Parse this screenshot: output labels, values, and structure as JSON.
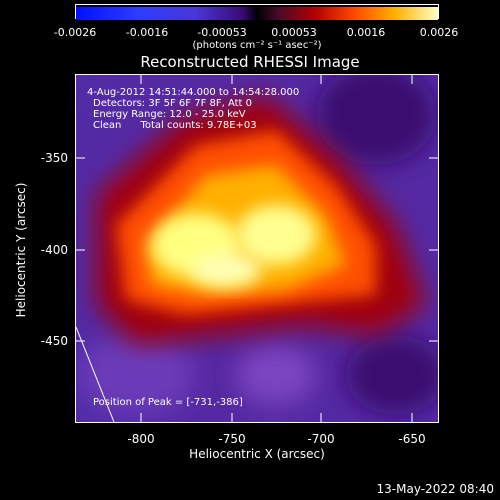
{
  "colorbar": {
    "tick_labels": [
      "-0.0026",
      "-0.0016",
      "-0.00053",
      "0.00053",
      "0.0016",
      "0.0026"
    ],
    "units": "(photons cm⁻² s⁻¹ asec⁻²)"
  },
  "title": "Reconstructed RHESSI Image",
  "annotations": {
    "time_range": "4-Aug-2012 14:51:44.000 to 14:54:28.000",
    "detectors": "Detectors: 3F 5F 6F 7F 8F, Att 0",
    "energy_range": "Energy Range: 12.0 - 25.0 keV",
    "method": "Clean      Total counts: 9.78E+03",
    "peak": "Position of Peak = [-731,-386]"
  },
  "axes": {
    "xlabel": "Heliocentric X (arcsec)",
    "ylabel": "Heliocentric Y (arcsec)",
    "x_ticks": [
      "-800",
      "-750",
      "-700",
      "-650"
    ],
    "y_ticks": [
      "-350",
      "-400",
      "-450"
    ]
  },
  "footer": "13-May-2022 08:40"
}
